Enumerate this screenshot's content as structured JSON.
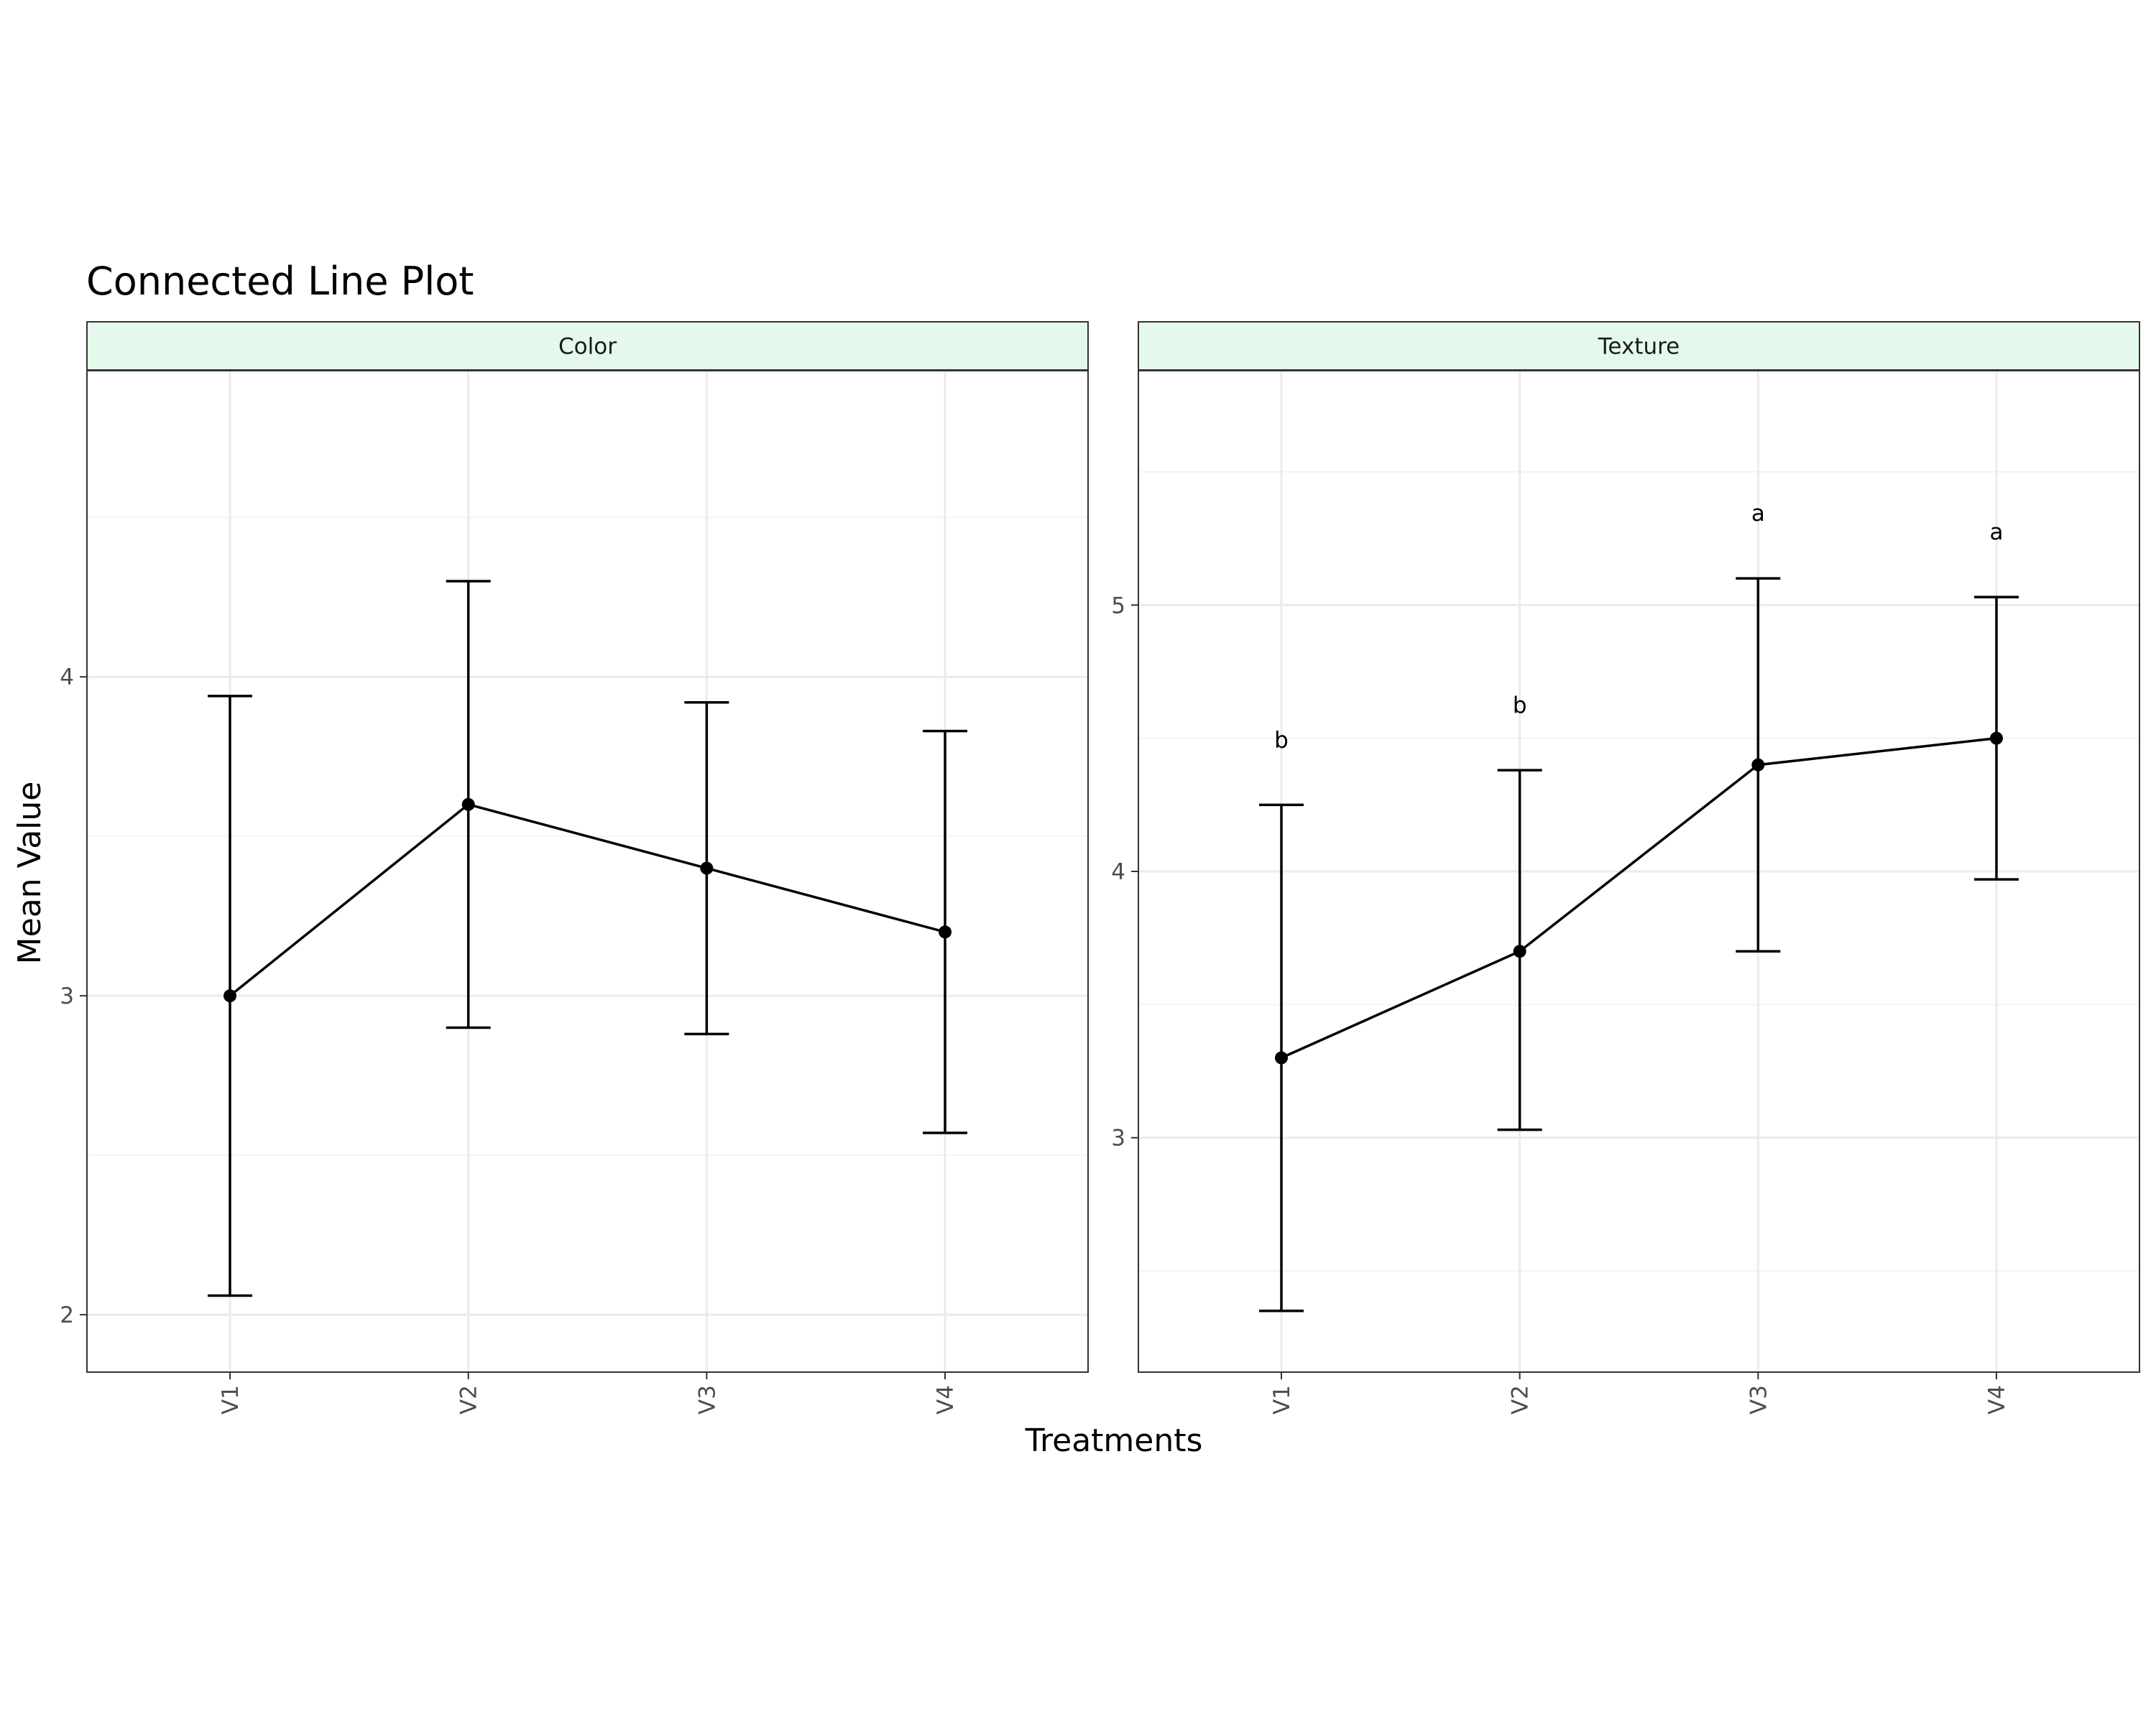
{
  "chart_data": {
    "type": "line",
    "title": "Connected Line Plot",
    "xlabel": "Treatments",
    "ylabel": "Mean Value",
    "categories": [
      "V1",
      "V2",
      "V3",
      "V4"
    ],
    "colors": {
      "line": "#000000",
      "strip_fill": "#e5f8ec",
      "grid_major": "#ebebeb",
      "grid_minor": "#f3f3f3",
      "panel_border": "#333333",
      "tick_text": "#4d4d4d"
    },
    "panels": [
      {
        "strip": "Color",
        "ylim": [
          1.82,
          4.96
        ],
        "yticks": [
          2,
          3,
          4
        ],
        "means": [
          3.0,
          3.6,
          3.4,
          3.2
        ],
        "error_lower": [
          2.06,
          2.9,
          2.88,
          2.57
        ],
        "error_upper": [
          3.94,
          4.3,
          3.92,
          3.83
        ],
        "letters": []
      },
      {
        "strip": "Texture",
        "ylim": [
          2.12,
          5.88
        ],
        "yticks": [
          3,
          4,
          5
        ],
        "means": [
          3.3,
          3.7,
          4.4,
          4.5
        ],
        "error_lower": [
          2.35,
          3.03,
          3.7,
          3.97
        ],
        "error_upper": [
          4.25,
          4.38,
          5.1,
          5.03
        ],
        "letters": [
          "b",
          "b",
          "a",
          "a"
        ]
      }
    ]
  }
}
